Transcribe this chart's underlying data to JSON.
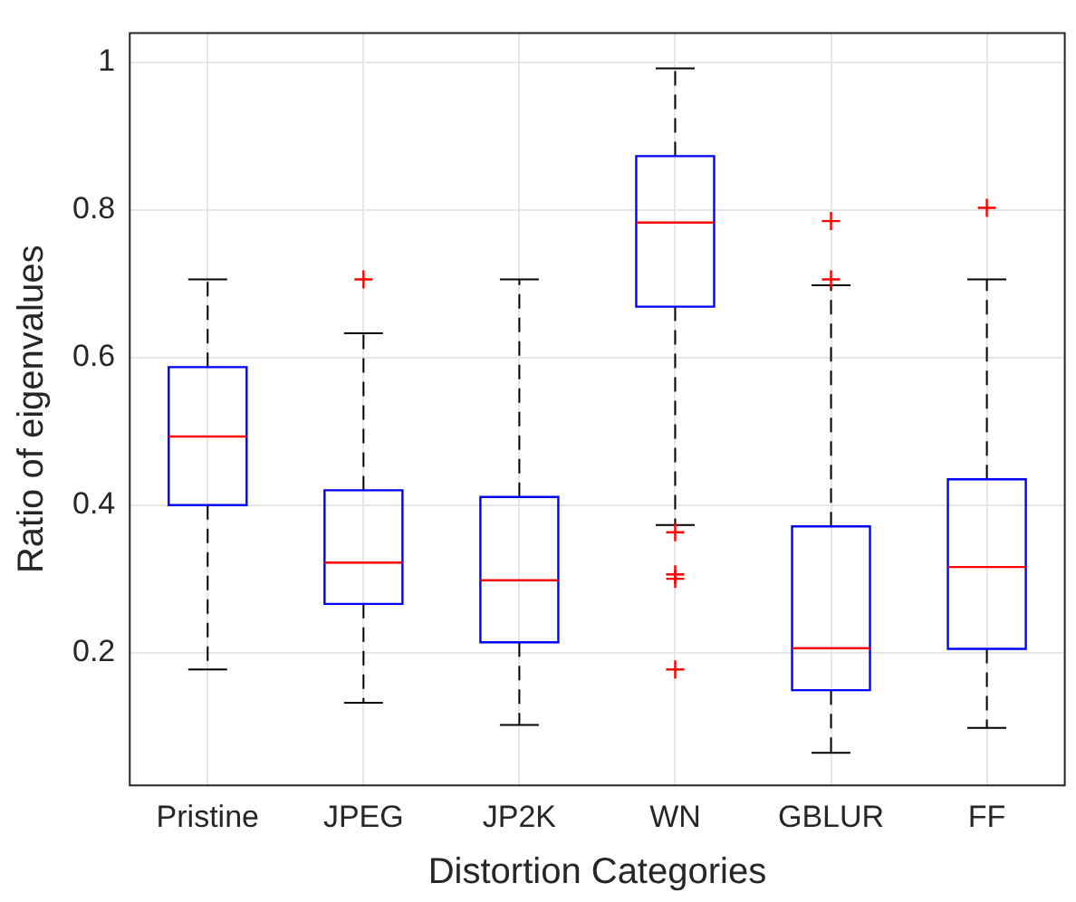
{
  "chart_data": {
    "type": "box",
    "xlabel": "Distortion Categories",
    "ylabel": "Ratio of eigenvalues",
    "categories": [
      "Pristine",
      "JPEG",
      "JP2K",
      "WN",
      "GBLUR",
      "FF"
    ],
    "boxes": [
      {
        "low": 0.177,
        "q1": 0.4,
        "median": 0.493,
        "q3": 0.587,
        "high": 0.706
      },
      {
        "low": 0.132,
        "q1": 0.266,
        "median": 0.322,
        "q3": 0.42,
        "high": 0.633,
        "outliers": [
          0.706
        ]
      },
      {
        "low": 0.102,
        "q1": 0.214,
        "median": 0.298,
        "q3": 0.411,
        "high": 0.706
      },
      {
        "low": 0.373,
        "q1": 0.669,
        "median": 0.783,
        "q3": 0.873,
        "high": 0.992,
        "outliers": [
          0.363,
          0.306,
          0.3,
          0.177
        ]
      },
      {
        "low": 0.064,
        "q1": 0.149,
        "median": 0.206,
        "q3": 0.371,
        "high": 0.698,
        "outliers": [
          0.785,
          0.706
        ]
      },
      {
        "low": 0.098,
        "q1": 0.205,
        "median": 0.316,
        "q3": 0.435,
        "high": 0.706,
        "outliers": [
          0.803
        ]
      }
    ],
    "color": "#0000ff",
    "ylim": [
      0.02,
      1.04
    ],
    "yticks": [
      0.2,
      0.4,
      0.6,
      0.8,
      1
    ],
    "grid": true,
    "marker": "cross"
  }
}
